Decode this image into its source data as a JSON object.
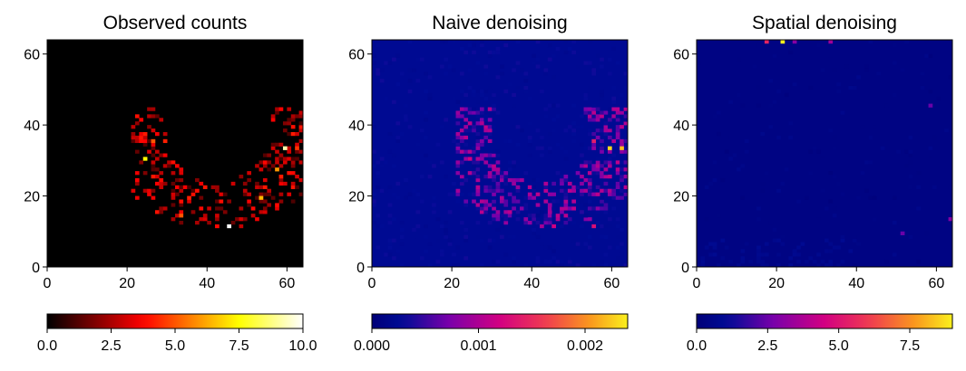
{
  "chart_data": [
    {
      "type": "heatmap",
      "title": "Observed counts",
      "xlabel": "",
      "ylabel": "",
      "xlim": [
        0,
        64
      ],
      "ylim": [
        0,
        64
      ],
      "xticks": [
        "0",
        "20",
        "40",
        "60"
      ],
      "yticks": [
        "0",
        "20",
        "40",
        "60"
      ],
      "grid_size": 64,
      "colormap": "hot",
      "colorbar": {
        "min": 0,
        "max": 10,
        "ticks": [
          "0.0",
          "2.5",
          "5.0",
          "7.5",
          "10.0"
        ]
      },
      "background_value": 0,
      "hotspots": [
        {
          "x": 45,
          "y": 11,
          "value": 10.0
        },
        {
          "x": 59,
          "y": 33,
          "value": 9.2
        },
        {
          "x": 24,
          "y": 30,
          "value": 7.5
        },
        {
          "x": 57,
          "y": 27,
          "value": 6.0
        },
        {
          "x": 26,
          "y": 35,
          "value": 5.0
        },
        {
          "x": 53,
          "y": 19,
          "value": 6.5
        },
        {
          "x": 33,
          "y": 14,
          "value": 5.0
        },
        {
          "x": 62,
          "y": 33,
          "value": 4.5
        }
      ]
    },
    {
      "type": "heatmap",
      "title": "Naive denoising",
      "xlabel": "",
      "ylabel": "",
      "xlim": [
        0,
        64
      ],
      "ylim": [
        0,
        64
      ],
      "xticks": [
        "0",
        "20",
        "40",
        "60"
      ],
      "yticks": [
        "0",
        "20",
        "40",
        "60"
      ],
      "grid_size": 64,
      "colormap": "plasma",
      "colorbar": {
        "min": 0.0,
        "max": 0.0024,
        "ticks": [
          "0.000",
          "0.001",
          "0.002"
        ]
      },
      "background_value": 0.00025,
      "hotspots": [
        {
          "x": 59,
          "y": 33,
          "value": 0.0023
        },
        {
          "x": 62,
          "y": 33,
          "value": 0.0022
        },
        {
          "x": 24,
          "y": 30,
          "value": 0.0012
        },
        {
          "x": 45,
          "y": 11,
          "value": 0.0012
        },
        {
          "x": 55,
          "y": 35,
          "value": 0.0014
        },
        {
          "x": 55,
          "y": 11,
          "value": 0.0013
        },
        {
          "x": 27,
          "y": 40,
          "value": 0.001
        }
      ]
    },
    {
      "type": "heatmap",
      "title": "Spatial denoising",
      "xlabel": "",
      "ylabel": "",
      "xlim": [
        0,
        64
      ],
      "ylim": [
        0,
        64
      ],
      "xticks": [
        "0",
        "20",
        "40",
        "60"
      ],
      "yticks": [
        "0",
        "20",
        "40",
        "60"
      ],
      "grid_size": 64,
      "colormap": "plasma",
      "colorbar": {
        "min": 0.0,
        "max": 9.0,
        "ticks": [
          "0.0",
          "2.5",
          "5.0",
          "7.5"
        ]
      },
      "background_value": 0.4,
      "hotspots": [
        {
          "x": 21,
          "y": 63,
          "value": 9.0
        },
        {
          "x": 17,
          "y": 63,
          "value": 5.5
        },
        {
          "x": 33,
          "y": 63,
          "value": 3.5
        },
        {
          "x": 24,
          "y": 63,
          "value": 3.0
        },
        {
          "x": 58,
          "y": 45,
          "value": 2.5
        },
        {
          "x": 63,
          "y": 13,
          "value": 3.0
        },
        {
          "x": 51,
          "y": 9,
          "value": 2.5
        }
      ]
    }
  ]
}
